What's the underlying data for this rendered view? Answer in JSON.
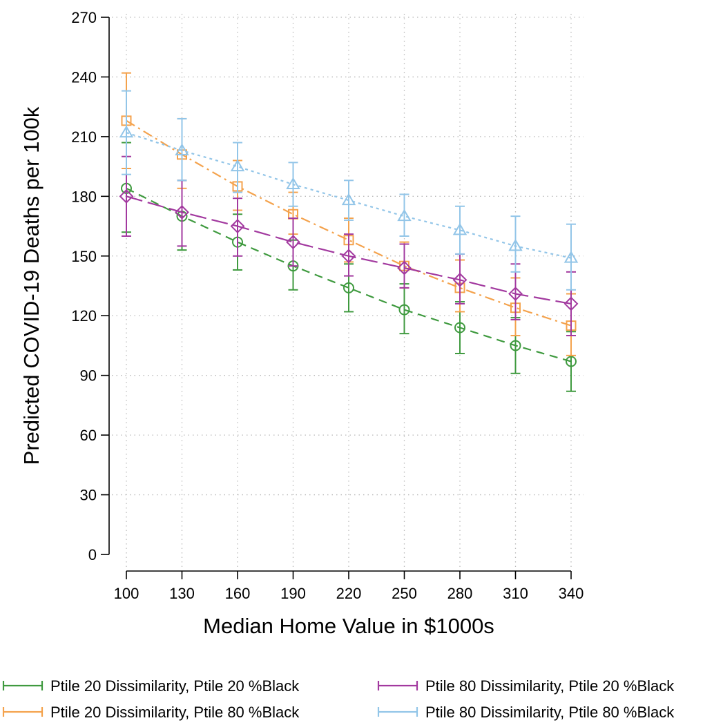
{
  "chart_data": {
    "type": "line",
    "title": "",
    "xlabel": "Median Home Value in $1000s",
    "ylabel": "Predicted COVID-19 Deaths per 100k",
    "x": [
      100,
      130,
      160,
      190,
      220,
      250,
      280,
      310,
      340
    ],
    "xticks": [
      "100",
      "130",
      "160",
      "190",
      "220",
      "250",
      "280",
      "310",
      "340"
    ],
    "yticks": [
      "0",
      "30",
      "60",
      "90",
      "120",
      "150",
      "180",
      "210",
      "240",
      "270"
    ],
    "xlim": [
      100,
      340
    ],
    "ylim": [
      0,
      270
    ],
    "grid": true,
    "legend_position": "bottom",
    "series": [
      {
        "name": "Ptile 20 Dissimilarity, Ptile 20 %Black",
        "color": "#3f9a3f",
        "marker": "circle",
        "dash": "dashed",
        "values": [
          184,
          170,
          157,
          145,
          134,
          123,
          114,
          105,
          97
        ],
        "lower": [
          162,
          153,
          143,
          133,
          122,
          111,
          101,
          91,
          82
        ],
        "upper": [
          207,
          188,
          171,
          158,
          146,
          136,
          127,
          119,
          112
        ]
      },
      {
        "name": "Ptile 20 Dissimilarity, Ptile 80 %Black",
        "color": "#f4a24c",
        "marker": "square",
        "dash": "dashdot",
        "values": [
          218,
          201,
          185,
          171,
          158,
          145,
          134,
          124,
          115
        ],
        "lower": [
          194,
          184,
          173,
          161,
          147,
          134,
          122,
          110,
          100
        ],
        "upper": [
          242,
          219,
          198,
          182,
          169,
          157,
          148,
          139,
          131
        ]
      },
      {
        "name": "Ptile 80 Dissimilarity, Ptile 20 %Black",
        "color": "#a2399f",
        "marker": "diamond",
        "dash": "longdash",
        "values": [
          180,
          172,
          165,
          157,
          150,
          144,
          138,
          131,
          126
        ],
        "lower": [
          160,
          155,
          150,
          145,
          140,
          134,
          126,
          118,
          110
        ],
        "upper": [
          200,
          188,
          179,
          169,
          161,
          156,
          151,
          146,
          142
        ]
      },
      {
        "name": "Ptile 80 Dissimilarity, Ptile 80 %Black",
        "color": "#92c5e8",
        "marker": "triangle",
        "dash": "dotted",
        "values": [
          212,
          203,
          195,
          186,
          178,
          170,
          163,
          155,
          149
        ],
        "lower": [
          191,
          188,
          182,
          175,
          168,
          160,
          151,
          142,
          133
        ],
        "upper": [
          233,
          219,
          207,
          197,
          188,
          181,
          175,
          170,
          166
        ]
      }
    ]
  }
}
